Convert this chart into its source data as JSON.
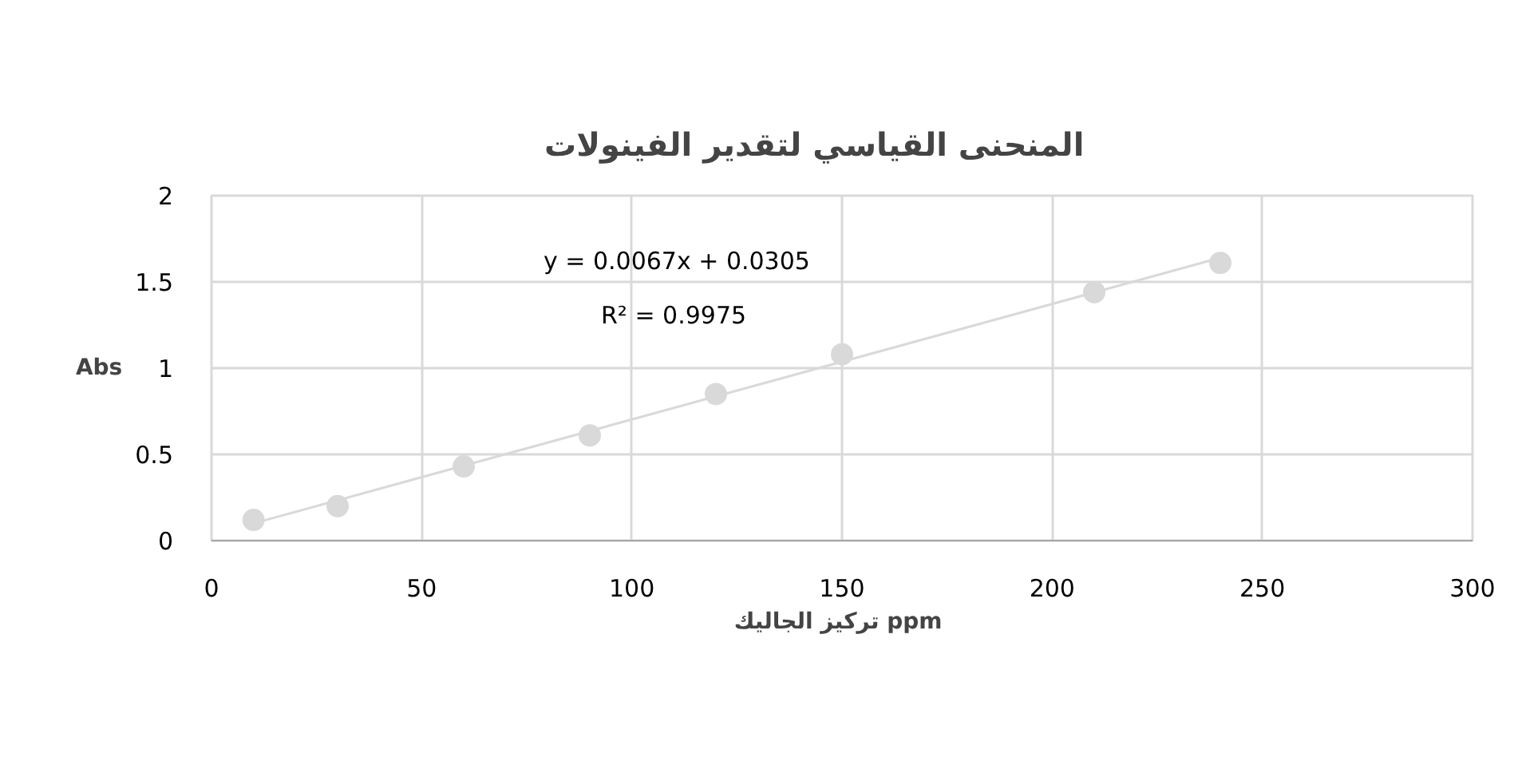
{
  "chart_data": {
    "type": "scatter",
    "title": "المنحنى   القياسي    لتقدير الفينولات",
    "xlabel": "تركيز الجاليك  ppm",
    "ylabel": "Abs",
    "x": [
      10,
      30,
      60,
      90,
      120,
      150,
      210,
      240
    ],
    "series": [
      {
        "color": "#d9d9d9",
        "values": [
          0.12,
          0.2,
          0.43,
          0.61,
          0.85,
          1.08,
          1.44,
          1.61
        ]
      },
      {
        "type": "line",
        "color": "#d9d9d9",
        "x": [
          10,
          240
        ],
        "values": [
          0.1,
          1.64
        ],
        "marker": "none"
      }
    ],
    "annotations": [
      "y =  0.0067x +  0.0305",
      "R² =   0.9975"
    ],
    "xlim": [
      0,
      300
    ],
    "xticks": [
      0,
      50,
      100,
      150,
      200,
      250,
      300
    ],
    "ylim": [
      0,
      2
    ],
    "yticks": [
      0,
      0.5,
      1,
      1.5,
      2
    ],
    "grid": true,
    "marker": "circle"
  }
}
